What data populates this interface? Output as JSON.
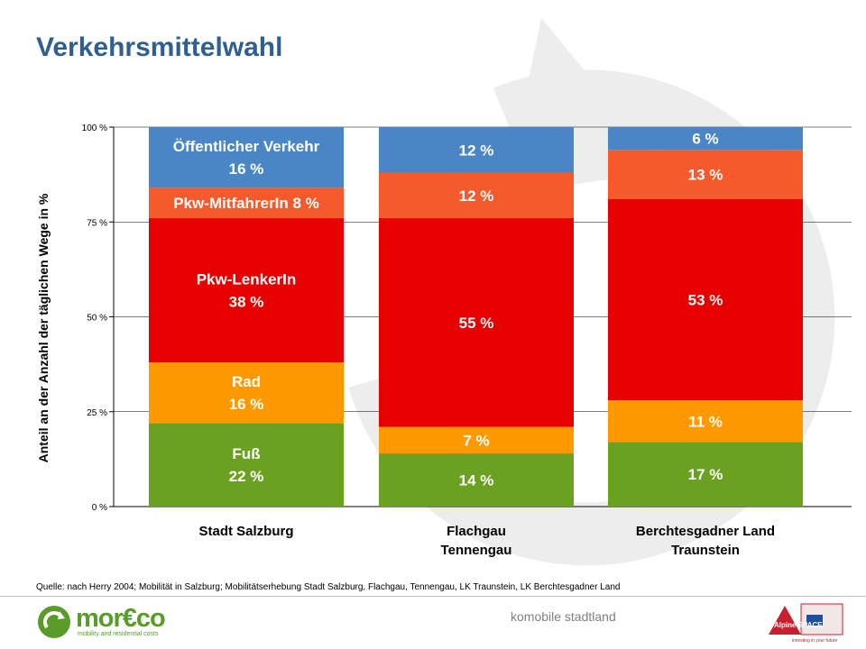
{
  "title": "Verkehrsmittelwahl",
  "source": "Quelle: nach Herry 2004; Mobilität in Salzburg; Mobilitätserhebung Stadt Salzburg, Flachgau, Tennengau, LK Traunstein, LK Berchtesgadner Land",
  "footer": {
    "text": "komobile stadtland"
  },
  "logo": {
    "name": "mor€co",
    "tagline": "mobility and residential costs"
  },
  "partner": {
    "label": "Alpine SPACE",
    "tagline": "investing in your future"
  },
  "colors": {
    "fuss": "#6aa121",
    "rad": "#ff9900",
    "pkw_lenker": "#e60000",
    "pkw_mitfahrer": "#f55a2c",
    "oev": "#4a86c5",
    "title": "#2f5f8f"
  },
  "chart_data": {
    "type": "bar",
    "stacked": true,
    "ylabel": "Anteil an der Anzahl der täglichen Wege in %",
    "ylim": [
      0,
      100
    ],
    "yticks": [
      "0 %",
      "25 %",
      "50 %",
      "75 %",
      "100 %"
    ],
    "grid": true,
    "categories": [
      "Stadt Salzburg",
      "Flachgau\nTennengau",
      "Berchtesgadner Land\nTraunstein"
    ],
    "series": [
      {
        "name": "Fuß",
        "values": [
          22,
          14,
          17
        ],
        "labels": [
          "Fuß\n22 %",
          "14 %",
          "17 %"
        ],
        "color": "#6aa121"
      },
      {
        "name": "Rad",
        "values": [
          16,
          7,
          11
        ],
        "labels": [
          "Rad\n16 %",
          "7 %",
          "11 %"
        ],
        "color": "#ff9900"
      },
      {
        "name": "Pkw-LenkerIn",
        "values": [
          38,
          55,
          53
        ],
        "labels": [
          "Pkw-LenkerIn\n38 %",
          "55 %",
          "53 %"
        ],
        "color": "#e60000"
      },
      {
        "name": "Pkw-MitfahrerIn",
        "values": [
          8,
          12,
          13
        ],
        "labels": [
          "Pkw-MitfahrerIn 8 %",
          "12 %",
          "13 %"
        ],
        "color": "#f55a2c"
      },
      {
        "name": "Öffentlicher Verkehr",
        "values": [
          16,
          12,
          6
        ],
        "labels": [
          "Öffentlicher Verkehr\n16 %",
          "12 %",
          "6 %"
        ],
        "color": "#4a86c5"
      }
    ]
  }
}
